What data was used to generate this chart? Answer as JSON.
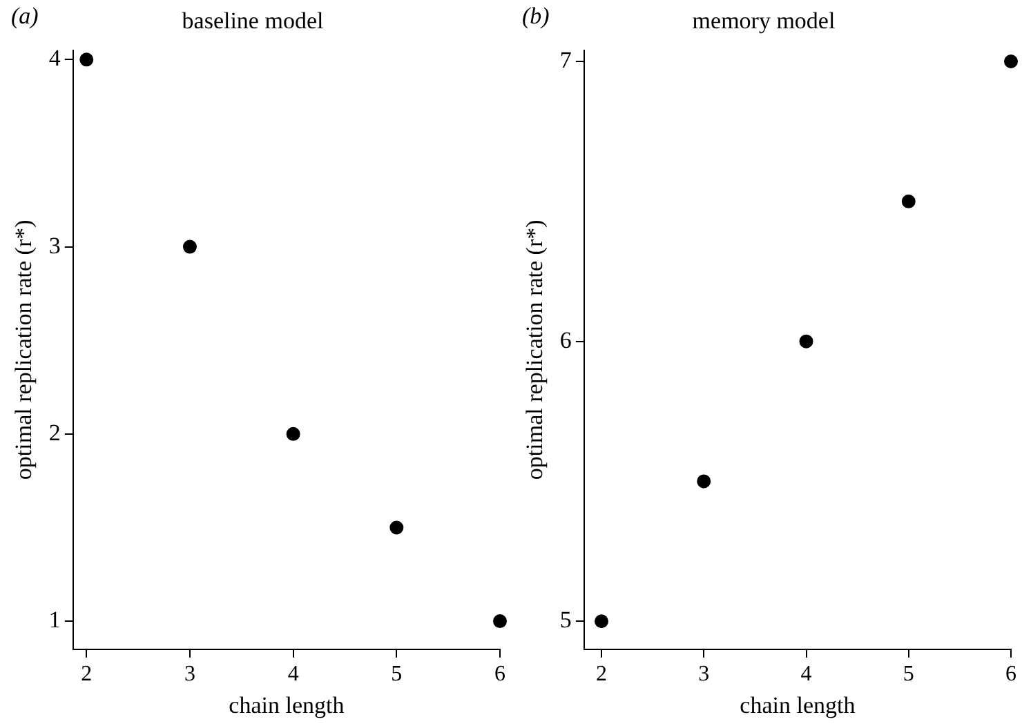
{
  "chart_data": [
    {
      "type": "scatter",
      "title": "baseline model",
      "annotations": [
        "(a)"
      ],
      "xlabel": "chain length",
      "ylabel": "optimal replication rate (r*)",
      "x": [
        2,
        3,
        4,
        5,
        6
      ],
      "series": [
        {
          "color": "#000000",
          "values": [
            4,
            3,
            2,
            1.5,
            1
          ]
        }
      ],
      "xlim": [
        1.87,
        6
      ],
      "xticks": [
        2,
        3,
        4,
        5,
        6
      ],
      "ylim": [
        0.85,
        4.05
      ],
      "yticks": [
        1,
        2,
        3,
        4
      ],
      "grid": false,
      "legend": false,
      "marker": "circle"
    },
    {
      "type": "scatter",
      "title": "memory model",
      "annotations": [
        "(b)"
      ],
      "xlabel": "chain length",
      "ylabel": "optimal replication rate (r*)",
      "x": [
        2,
        3,
        4,
        5,
        6
      ],
      "series": [
        {
          "color": "#000000",
          "values": [
            5,
            5.5,
            6,
            6.5,
            7
          ]
        }
      ],
      "xlim": [
        1.83,
        6
      ],
      "xticks": [
        2,
        3,
        4,
        5,
        6
      ],
      "ylim": [
        4.9,
        7.04
      ],
      "yticks": [
        5,
        6,
        7
      ],
      "grid": false,
      "legend": false,
      "marker": "circle"
    }
  ]
}
